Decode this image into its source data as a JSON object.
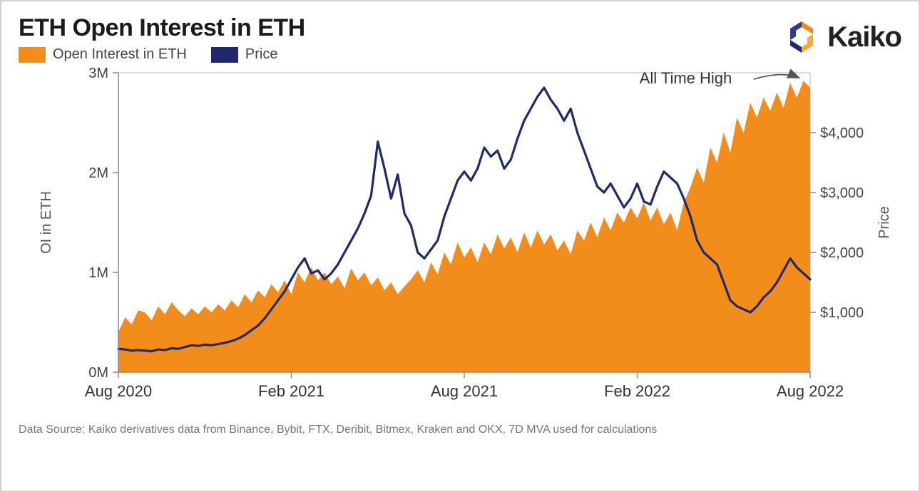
{
  "title": "ETH Open Interest in ETH",
  "brand": "Kaiko",
  "brand_colors": {
    "orange": "#f28c1a",
    "navy": "#1e2a6b"
  },
  "legend": [
    {
      "label": "Open Interest in ETH",
      "color": "#f28c1a",
      "type": "area"
    },
    {
      "label": "Price",
      "color": "#1e2a6b",
      "type": "line"
    }
  ],
  "annotation": {
    "text": "All Time High",
    "arrow_color": "#555555"
  },
  "footer": "Data Source: Kaiko derivatives data from Binance, Bybit, FTX, Deribit, Bitmex, Kraken and OKX, 7D MVA used for calculations",
  "chart": {
    "type": "dual-axis-area-line",
    "background_color": "#ffffff",
    "plot_border_color": "#cfcfcf",
    "font_family": "Verdana",
    "axis_label_fontsize": 20,
    "tick_fontsize": 20,
    "x": {
      "min": 0,
      "max": 104,
      "tick_positions": [
        0,
        26,
        52,
        78,
        104
      ],
      "tick_labels": [
        "Aug 2020",
        "Feb 2021",
        "Aug 2021",
        "Feb 2022",
        "Aug 2022"
      ]
    },
    "y_left": {
      "title": "OI in ETH",
      "min": 0,
      "max": 3000000,
      "tick_positions": [
        0,
        1000000,
        2000000,
        3000000
      ],
      "tick_labels": [
        "0M",
        "1M",
        "2M",
        "3M"
      ]
    },
    "y_right": {
      "title": "Price",
      "min": 0,
      "max": 5000,
      "tick_positions": [
        1000,
        2000,
        3000,
        4000
      ],
      "tick_labels": [
        "$1,000",
        "$2,000",
        "$3,000",
        "$4,000"
      ]
    },
    "series_area": {
      "name": "Open Interest in ETH",
      "color": "#f28c1a",
      "fill_opacity": 1.0,
      "values": [
        400000,
        550000,
        480000,
        620000,
        600000,
        520000,
        660000,
        580000,
        700000,
        620000,
        560000,
        640000,
        580000,
        660000,
        600000,
        680000,
        620000,
        720000,
        650000,
        780000,
        700000,
        820000,
        750000,
        880000,
        800000,
        920000,
        780000,
        1000000,
        900000,
        1050000,
        920000,
        1000000,
        880000,
        960000,
        840000,
        1040000,
        920000,
        1000000,
        870000,
        950000,
        820000,
        900000,
        780000,
        860000,
        930000,
        1020000,
        900000,
        1100000,
        980000,
        1200000,
        1080000,
        1300000,
        1150000,
        1250000,
        1100000,
        1300000,
        1180000,
        1380000,
        1240000,
        1350000,
        1200000,
        1400000,
        1250000,
        1420000,
        1280000,
        1380000,
        1220000,
        1320000,
        1180000,
        1420000,
        1320000,
        1500000,
        1350000,
        1550000,
        1420000,
        1600000,
        1500000,
        1650000,
        1540000,
        1700000,
        1520000,
        1650000,
        1480000,
        1600000,
        1420000,
        1700000,
        1850000,
        2050000,
        1900000,
        2250000,
        2100000,
        2400000,
        2200000,
        2550000,
        2400000,
        2700000,
        2550000,
        2750000,
        2620000,
        2800000,
        2650000,
        2900000,
        2750000,
        2920000,
        2850000
      ]
    },
    "series_line": {
      "name": "Price",
      "color": "#1e2a6b",
      "line_width": 3.2,
      "values": [
        390,
        380,
        360,
        370,
        360,
        350,
        380,
        370,
        400,
        390,
        420,
        450,
        440,
        460,
        450,
        470,
        490,
        520,
        560,
        620,
        700,
        780,
        900,
        1050,
        1200,
        1350,
        1550,
        1750,
        1900,
        1650,
        1700,
        1550,
        1650,
        1800,
        2000,
        2200,
        2400,
        2650,
        2950,
        3850,
        3400,
        2900,
        3300,
        2650,
        2450,
        2000,
        1900,
        2050,
        2200,
        2600,
        2900,
        3200,
        3350,
        3200,
        3400,
        3750,
        3600,
        3700,
        3400,
        3550,
        3900,
        4200,
        4400,
        4600,
        4750,
        4550,
        4400,
        4200,
        4400,
        4000,
        3700,
        3400,
        3100,
        3000,
        3150,
        2950,
        2750,
        2900,
        3150,
        2850,
        2800,
        3100,
        3350,
        3250,
        3150,
        2900,
        2600,
        2200,
        2000,
        1900,
        1800,
        1500,
        1200,
        1100,
        1050,
        1000,
        1100,
        1250,
        1350,
        1500,
        1700,
        1900,
        1750,
        1650,
        1550
      ]
    }
  }
}
